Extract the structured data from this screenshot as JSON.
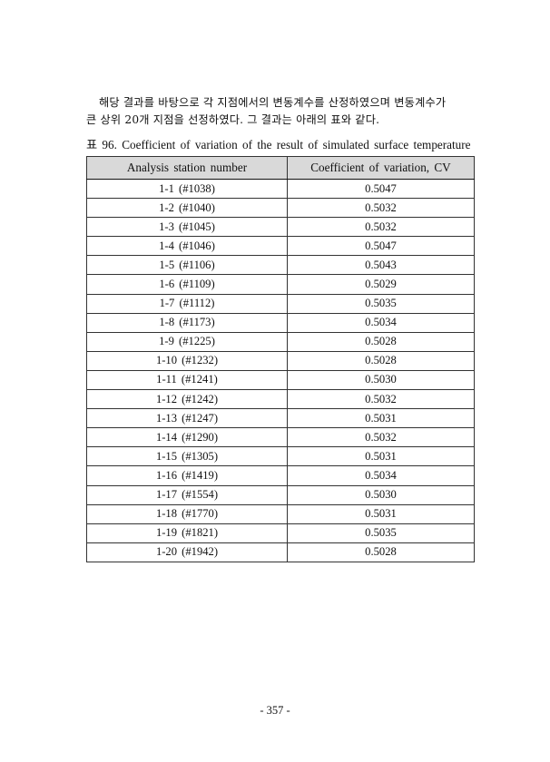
{
  "paragraph": {
    "line1": "해당 결과를 바탕으로 각 지점에서의 변동계수를 산정하였으며 변동계수가",
    "line2": "큰 상위 20개 지점을 선정하였다. 그 결과는 아래의 표와 같다."
  },
  "table": {
    "caption": "표 96. Coefficient of variation of the result of simulated surface temperature",
    "headers": [
      "Analysis station number",
      "Coefficient of variation, CV"
    ],
    "rows": [
      [
        "1-1  (#1038)",
        "0.5047"
      ],
      [
        "1-2  (#1040)",
        "0.5032"
      ],
      [
        "1-3  (#1045)",
        "0.5032"
      ],
      [
        "1-4  (#1046)",
        "0.5047"
      ],
      [
        "1-5  (#1106)",
        "0.5043"
      ],
      [
        "1-6  (#1109)",
        "0.5029"
      ],
      [
        "1-7  (#1112)",
        "0.5035"
      ],
      [
        "1-8  (#1173)",
        "0.5034"
      ],
      [
        "1-9  (#1225)",
        "0.5028"
      ],
      [
        "1-10  (#1232)",
        "0.5028"
      ],
      [
        "1-11  (#1241)",
        "0.5030"
      ],
      [
        "1-12  (#1242)",
        "0.5032"
      ],
      [
        "1-13  (#1247)",
        "0.5031"
      ],
      [
        "1-14  (#1290)",
        "0.5032"
      ],
      [
        "1-15  (#1305)",
        "0.5031"
      ],
      [
        "1-16  (#1419)",
        "0.5034"
      ],
      [
        "1-17  (#1554)",
        "0.5030"
      ],
      [
        "1-18  (#1770)",
        "0.5031"
      ],
      [
        "1-19  (#1821)",
        "0.5035"
      ],
      [
        "1-20  (#1942)",
        "0.5028"
      ]
    ]
  },
  "footer": {
    "page_number": "- 357 -"
  }
}
